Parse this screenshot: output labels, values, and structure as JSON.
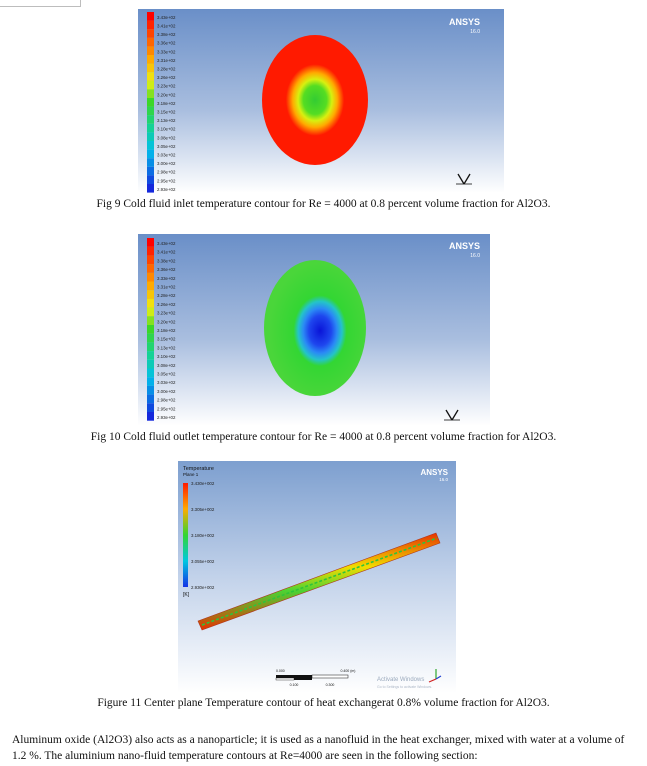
{
  "figures": [
    {
      "id": "fig9",
      "brand": "ANSYS",
      "version": "16.0",
      "legend_labels": [
        "3.43e+02",
        "3.41e+02",
        "3.38e+02",
        "3.36e+02",
        "3.33e+02",
        "3.31e+02",
        "3.28e+02",
        "3.26e+02",
        "3.23e+02",
        "3.20e+02",
        "3.18e+02",
        "3.15e+02",
        "3.13e+02",
        "3.10e+02",
        "3.08e+02",
        "3.05e+02",
        "3.03e+02",
        "3.00e+02",
        "2.98e+02",
        "2.95e+02",
        "2.93e+02"
      ],
      "caption": "Fig 9 Cold fluid inlet temperature contour for Re = 4000 at 0.8 percent volume fraction for Al2O3."
    },
    {
      "id": "fig10",
      "brand": "ANSYS",
      "version": "16.0",
      "legend_labels": [
        "3.43e+02",
        "3.41e+02",
        "3.38e+02",
        "3.36e+02",
        "3.33e+02",
        "3.31e+02",
        "3.28e+02",
        "3.26e+02",
        "3.23e+02",
        "3.20e+02",
        "3.18e+02",
        "3.15e+02",
        "3.13e+02",
        "3.10e+02",
        "3.08e+02",
        "3.05e+02",
        "3.03e+02",
        "3.00e+02",
        "2.98e+02",
        "2.95e+02",
        "2.93e+02"
      ],
      "caption": "Fig 10 Cold fluid outlet temperature contour for Re = 4000 at 0.8 percent volume fraction for Al2O3."
    },
    {
      "id": "fig11",
      "brand": "ANSYS",
      "version": "16.0",
      "legend_title": "Temperature",
      "legend_subtitle": "Plane 1",
      "legend_labels": [
        "3.430e+002",
        "3.305e+002",
        "3.180e+002",
        "3.055e+002",
        "2.930e+002"
      ],
      "legend_unit": "[K]",
      "scale_labels": [
        "0.000",
        "0.400 (m)",
        "0.100",
        "0.300"
      ],
      "watermark_line1": "Activate Windows",
      "watermark_line2": "Go to Settings to activate Windows.",
      "caption": "Figure 11 Center plane Temperature contour of heat exchangerat 0.8% volume fraction for Al2O3."
    }
  ],
  "paragraph": "Aluminum oxide (Al2O3) also acts as a nanoparticle; it  is used as a nanofluid in the heat exchanger, mixed with water at a volume of 1.2 %. The aluminium nano-fluid temperature contours at Re=4000 are seen in the following section:",
  "colors": {
    "ansys_bg_top": "#6a8fc8",
    "ansys_bg_bottom": "#ffffff",
    "red": "#ff1a00",
    "green": "#33d633",
    "blue": "#1432e6",
    "yellow": "#e8f218"
  }
}
